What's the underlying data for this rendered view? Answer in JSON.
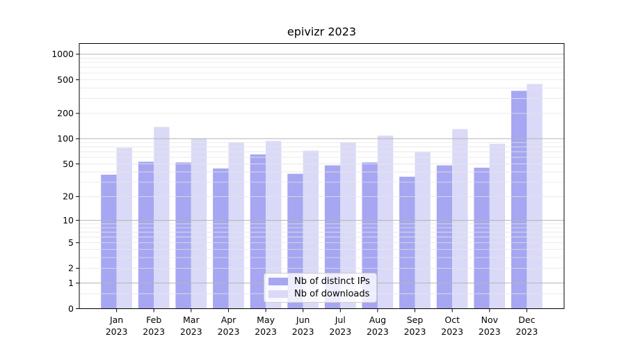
{
  "chart_data": {
    "type": "bar",
    "title": "epivizr 2023",
    "categories": [
      "Jan",
      "Feb",
      "Mar",
      "Apr",
      "May",
      "Jun",
      "Jul",
      "Aug",
      "Sep",
      "Oct",
      "Nov",
      "Dec"
    ],
    "year_label": "2023",
    "series": [
      {
        "name": "Nb of distinct IPs",
        "color": "#a6a6f2",
        "values": [
          37,
          53,
          52,
          44,
          65,
          38,
          48,
          52,
          35,
          48,
          45,
          370
        ]
      },
      {
        "name": "Nb of downloads",
        "color": "#dadaf8",
        "values": [
          78,
          138,
          101,
          90,
          94,
          72,
          90,
          109,
          69,
          130,
          87,
          445
        ]
      }
    ],
    "yscale": "log1p",
    "ylim": [
      0,
      1340
    ],
    "y_ticks": [
      1000,
      500,
      200,
      100,
      50,
      20,
      10,
      5,
      2,
      1,
      0
    ],
    "grid": {
      "major_values": [
        1,
        10,
        100,
        1000
      ],
      "major_color": "#b3b3b3",
      "minor_color": "#e6e6e6",
      "drawn_above_bars": true
    },
    "legend": {
      "position": "bottom-center-inside"
    },
    "axis_color": "#000000",
    "text_color": "#000000",
    "background": "#ffffff"
  }
}
